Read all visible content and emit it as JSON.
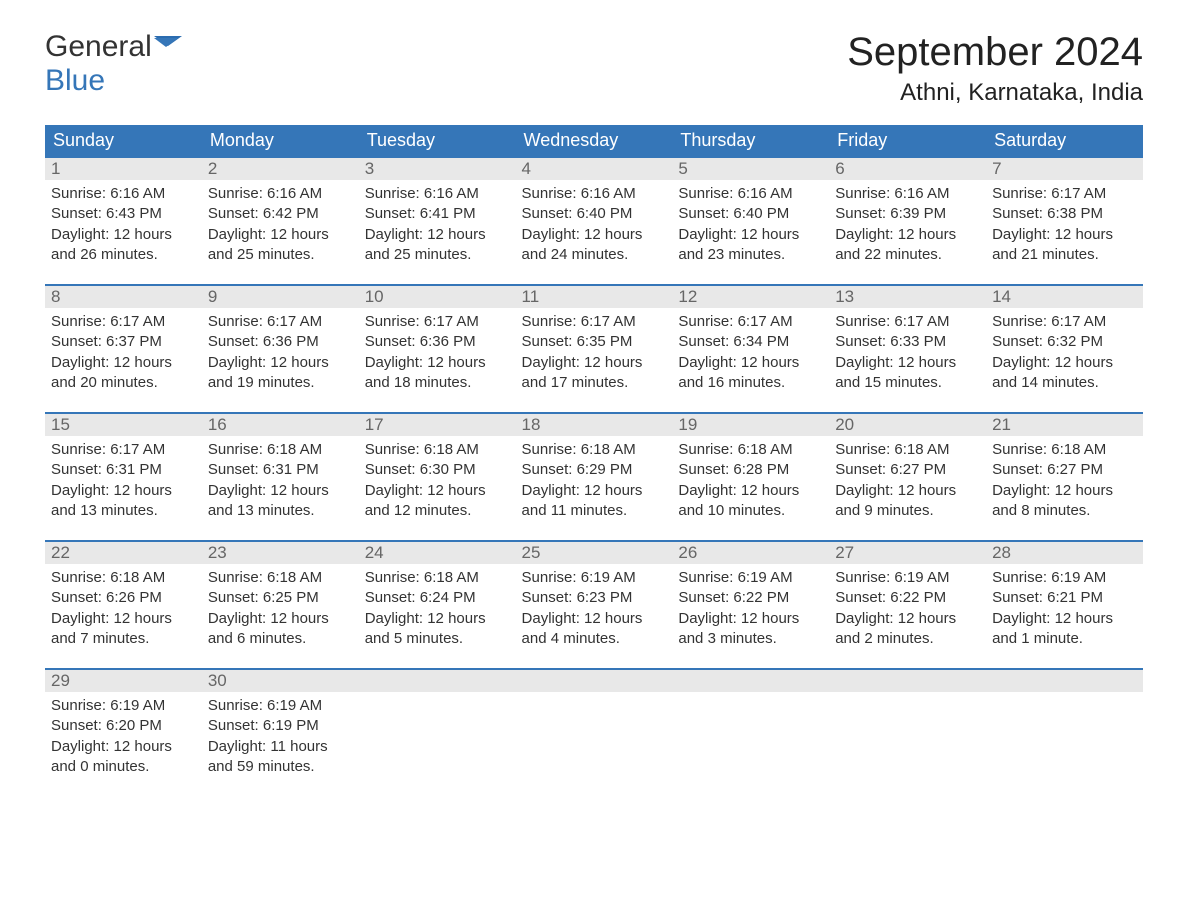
{
  "logo": {
    "part1": "General",
    "part2": "Blue",
    "icon_color": "#2b6cb0"
  },
  "title": "September 2024",
  "location": "Athni, Karnataka, India",
  "colors": {
    "header_bg": "#3576b8",
    "header_text": "#ffffff",
    "day_number_bg": "#e8e8e8",
    "day_number_text": "#666666",
    "body_text": "#333333",
    "week_border": "#3576b8"
  },
  "day_headers": [
    "Sunday",
    "Monday",
    "Tuesday",
    "Wednesday",
    "Thursday",
    "Friday",
    "Saturday"
  ],
  "weeks": [
    [
      {
        "num": "1",
        "sunrise": "Sunrise: 6:16 AM",
        "sunset": "Sunset: 6:43 PM",
        "daylight1": "Daylight: 12 hours",
        "daylight2": "and 26 minutes."
      },
      {
        "num": "2",
        "sunrise": "Sunrise: 6:16 AM",
        "sunset": "Sunset: 6:42 PM",
        "daylight1": "Daylight: 12 hours",
        "daylight2": "and 25 minutes."
      },
      {
        "num": "3",
        "sunrise": "Sunrise: 6:16 AM",
        "sunset": "Sunset: 6:41 PM",
        "daylight1": "Daylight: 12 hours",
        "daylight2": "and 25 minutes."
      },
      {
        "num": "4",
        "sunrise": "Sunrise: 6:16 AM",
        "sunset": "Sunset: 6:40 PM",
        "daylight1": "Daylight: 12 hours",
        "daylight2": "and 24 minutes."
      },
      {
        "num": "5",
        "sunrise": "Sunrise: 6:16 AM",
        "sunset": "Sunset: 6:40 PM",
        "daylight1": "Daylight: 12 hours",
        "daylight2": "and 23 minutes."
      },
      {
        "num": "6",
        "sunrise": "Sunrise: 6:16 AM",
        "sunset": "Sunset: 6:39 PM",
        "daylight1": "Daylight: 12 hours",
        "daylight2": "and 22 minutes."
      },
      {
        "num": "7",
        "sunrise": "Sunrise: 6:17 AM",
        "sunset": "Sunset: 6:38 PM",
        "daylight1": "Daylight: 12 hours",
        "daylight2": "and 21 minutes."
      }
    ],
    [
      {
        "num": "8",
        "sunrise": "Sunrise: 6:17 AM",
        "sunset": "Sunset: 6:37 PM",
        "daylight1": "Daylight: 12 hours",
        "daylight2": "and 20 minutes."
      },
      {
        "num": "9",
        "sunrise": "Sunrise: 6:17 AM",
        "sunset": "Sunset: 6:36 PM",
        "daylight1": "Daylight: 12 hours",
        "daylight2": "and 19 minutes."
      },
      {
        "num": "10",
        "sunrise": "Sunrise: 6:17 AM",
        "sunset": "Sunset: 6:36 PM",
        "daylight1": "Daylight: 12 hours",
        "daylight2": "and 18 minutes."
      },
      {
        "num": "11",
        "sunrise": "Sunrise: 6:17 AM",
        "sunset": "Sunset: 6:35 PM",
        "daylight1": "Daylight: 12 hours",
        "daylight2": "and 17 minutes."
      },
      {
        "num": "12",
        "sunrise": "Sunrise: 6:17 AM",
        "sunset": "Sunset: 6:34 PM",
        "daylight1": "Daylight: 12 hours",
        "daylight2": "and 16 minutes."
      },
      {
        "num": "13",
        "sunrise": "Sunrise: 6:17 AM",
        "sunset": "Sunset: 6:33 PM",
        "daylight1": "Daylight: 12 hours",
        "daylight2": "and 15 minutes."
      },
      {
        "num": "14",
        "sunrise": "Sunrise: 6:17 AM",
        "sunset": "Sunset: 6:32 PM",
        "daylight1": "Daylight: 12 hours",
        "daylight2": "and 14 minutes."
      }
    ],
    [
      {
        "num": "15",
        "sunrise": "Sunrise: 6:17 AM",
        "sunset": "Sunset: 6:31 PM",
        "daylight1": "Daylight: 12 hours",
        "daylight2": "and 13 minutes."
      },
      {
        "num": "16",
        "sunrise": "Sunrise: 6:18 AM",
        "sunset": "Sunset: 6:31 PM",
        "daylight1": "Daylight: 12 hours",
        "daylight2": "and 13 minutes."
      },
      {
        "num": "17",
        "sunrise": "Sunrise: 6:18 AM",
        "sunset": "Sunset: 6:30 PM",
        "daylight1": "Daylight: 12 hours",
        "daylight2": "and 12 minutes."
      },
      {
        "num": "18",
        "sunrise": "Sunrise: 6:18 AM",
        "sunset": "Sunset: 6:29 PM",
        "daylight1": "Daylight: 12 hours",
        "daylight2": "and 11 minutes."
      },
      {
        "num": "19",
        "sunrise": "Sunrise: 6:18 AM",
        "sunset": "Sunset: 6:28 PM",
        "daylight1": "Daylight: 12 hours",
        "daylight2": "and 10 minutes."
      },
      {
        "num": "20",
        "sunrise": "Sunrise: 6:18 AM",
        "sunset": "Sunset: 6:27 PM",
        "daylight1": "Daylight: 12 hours",
        "daylight2": "and 9 minutes."
      },
      {
        "num": "21",
        "sunrise": "Sunrise: 6:18 AM",
        "sunset": "Sunset: 6:27 PM",
        "daylight1": "Daylight: 12 hours",
        "daylight2": "and 8 minutes."
      }
    ],
    [
      {
        "num": "22",
        "sunrise": "Sunrise: 6:18 AM",
        "sunset": "Sunset: 6:26 PM",
        "daylight1": "Daylight: 12 hours",
        "daylight2": "and 7 minutes."
      },
      {
        "num": "23",
        "sunrise": "Sunrise: 6:18 AM",
        "sunset": "Sunset: 6:25 PM",
        "daylight1": "Daylight: 12 hours",
        "daylight2": "and 6 minutes."
      },
      {
        "num": "24",
        "sunrise": "Sunrise: 6:18 AM",
        "sunset": "Sunset: 6:24 PM",
        "daylight1": "Daylight: 12 hours",
        "daylight2": "and 5 minutes."
      },
      {
        "num": "25",
        "sunrise": "Sunrise: 6:19 AM",
        "sunset": "Sunset: 6:23 PM",
        "daylight1": "Daylight: 12 hours",
        "daylight2": "and 4 minutes."
      },
      {
        "num": "26",
        "sunrise": "Sunrise: 6:19 AM",
        "sunset": "Sunset: 6:22 PM",
        "daylight1": "Daylight: 12 hours",
        "daylight2": "and 3 minutes."
      },
      {
        "num": "27",
        "sunrise": "Sunrise: 6:19 AM",
        "sunset": "Sunset: 6:22 PM",
        "daylight1": "Daylight: 12 hours",
        "daylight2": "and 2 minutes."
      },
      {
        "num": "28",
        "sunrise": "Sunrise: 6:19 AM",
        "sunset": "Sunset: 6:21 PM",
        "daylight1": "Daylight: 12 hours",
        "daylight2": "and 1 minute."
      }
    ],
    [
      {
        "num": "29",
        "sunrise": "Sunrise: 6:19 AM",
        "sunset": "Sunset: 6:20 PM",
        "daylight1": "Daylight: 12 hours",
        "daylight2": "and 0 minutes."
      },
      {
        "num": "30",
        "sunrise": "Sunrise: 6:19 AM",
        "sunset": "Sunset: 6:19 PM",
        "daylight1": "Daylight: 11 hours",
        "daylight2": "and 59 minutes."
      },
      {
        "empty": true
      },
      {
        "empty": true
      },
      {
        "empty": true
      },
      {
        "empty": true
      },
      {
        "empty": true
      }
    ]
  ]
}
